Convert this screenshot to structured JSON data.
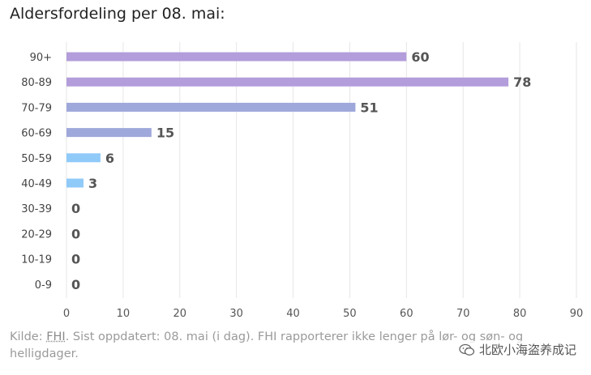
{
  "title": "Aldersfordeling per 08. mai:",
  "chart_data": {
    "type": "bar",
    "orientation": "horizontal",
    "title": "Aldersfordeling per 08. mai:",
    "categories": [
      "90+",
      "80-89",
      "70-79",
      "60-69",
      "50-59",
      "40-49",
      "30-39",
      "20-29",
      "10-19",
      "0-9"
    ],
    "values": [
      60,
      78,
      51,
      15,
      6,
      3,
      0,
      0,
      0,
      0
    ],
    "xlim": [
      0,
      90
    ],
    "xticks": [
      0,
      10,
      20,
      30,
      40,
      50,
      60,
      70,
      80,
      90
    ],
    "xlabel": "",
    "ylabel": "",
    "grid": "vertical",
    "data_labels": true,
    "colors": [
      "#b39ddb",
      "#b39ddb",
      "#9fa8da",
      "#9fa8da",
      "#90caf9",
      "#90caf9",
      "#90caf9",
      "#90caf9",
      "#90caf9",
      "#90caf9"
    ]
  },
  "footer": {
    "prefix": "Kilde: ",
    "link": "FHI",
    "rest": ". Sist oppdatert: 08. mai (i dag). FHI rapporterer ikke lenger på lør- og søn- og helligdager."
  },
  "watermark": {
    "text": "北欧小海盗养成记",
    "icon": "wechat-icon"
  }
}
